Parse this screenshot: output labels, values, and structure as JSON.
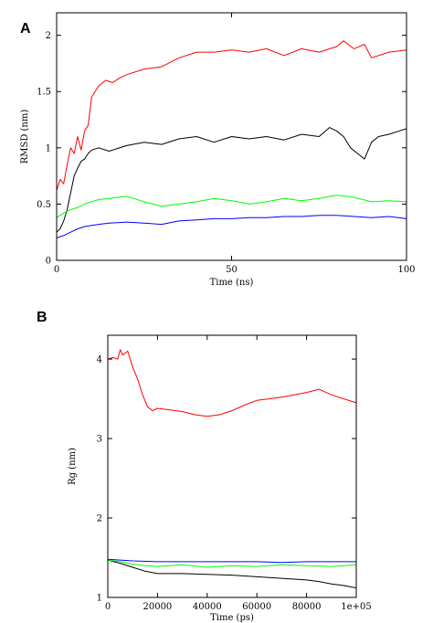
{
  "chart_data": [
    {
      "type": "line",
      "panel_label": "A",
      "xlabel": "Time (ns)",
      "ylabel": "RMSD (nm)",
      "xlim": [
        0,
        100
      ],
      "ylim": [
        0,
        2.2
      ],
      "xticks": [
        0,
        50,
        100
      ],
      "xtick_labels": [
        "0",
        "50",
        "100"
      ],
      "yticks": [
        0,
        0.5,
        1,
        1.5,
        2
      ],
      "ytick_labels": [
        "0",
        "0.5",
        "1",
        "1.5",
        "2"
      ],
      "grid": false,
      "series": [
        {
          "color": "#ff0000",
          "x": [
            0,
            1,
            2,
            3,
            4,
            5,
            6,
            7,
            8,
            9,
            10,
            12,
            14,
            16,
            18,
            20,
            25,
            30,
            35,
            40,
            45,
            50,
            55,
            60,
            65,
            70,
            75,
            80,
            82,
            85,
            88,
            90,
            95,
            100
          ],
          "values": [
            0.62,
            0.72,
            0.68,
            0.85,
            1.0,
            0.95,
            1.1,
            0.98,
            1.15,
            1.2,
            1.45,
            1.55,
            1.6,
            1.58,
            1.62,
            1.65,
            1.7,
            1.72,
            1.8,
            1.85,
            1.85,
            1.87,
            1.85,
            1.88,
            1.82,
            1.88,
            1.85,
            1.9,
            1.95,
            1.88,
            1.92,
            1.8,
            1.85,
            1.87
          ]
        },
        {
          "color": "#000000",
          "x": [
            0,
            1,
            2,
            3,
            4,
            5,
            6,
            7,
            8,
            9,
            10,
            12,
            15,
            20,
            25,
            30,
            35,
            40,
            45,
            50,
            55,
            60,
            65,
            70,
            75,
            78,
            80,
            82,
            84,
            86,
            88,
            90,
            92,
            95,
            98,
            100
          ],
          "values": [
            0.25,
            0.28,
            0.35,
            0.45,
            0.6,
            0.75,
            0.82,
            0.88,
            0.9,
            0.95,
            0.98,
            1.0,
            0.97,
            1.02,
            1.05,
            1.03,
            1.08,
            1.1,
            1.05,
            1.1,
            1.08,
            1.1,
            1.07,
            1.12,
            1.1,
            1.18,
            1.15,
            1.1,
            1.0,
            0.95,
            0.9,
            1.05,
            1.1,
            1.12,
            1.15,
            1.17
          ]
        },
        {
          "color": "#00ff00",
          "x": [
            0,
            2,
            4,
            6,
            8,
            10,
            12,
            15,
            20,
            25,
            30,
            35,
            40,
            45,
            50,
            55,
            60,
            65,
            70,
            75,
            80,
            85,
            90,
            95,
            100
          ],
          "values": [
            0.38,
            0.42,
            0.45,
            0.47,
            0.5,
            0.52,
            0.54,
            0.55,
            0.57,
            0.52,
            0.48,
            0.5,
            0.52,
            0.55,
            0.53,
            0.5,
            0.52,
            0.55,
            0.53,
            0.55,
            0.58,
            0.56,
            0.52,
            0.53,
            0.52
          ]
        },
        {
          "color": "#0000ff",
          "x": [
            0,
            2,
            4,
            6,
            8,
            10,
            12,
            15,
            20,
            25,
            30,
            35,
            40,
            45,
            50,
            55,
            60,
            65,
            70,
            75,
            80,
            85,
            90,
            95,
            100
          ],
          "values": [
            0.2,
            0.22,
            0.25,
            0.28,
            0.3,
            0.31,
            0.32,
            0.33,
            0.34,
            0.33,
            0.32,
            0.35,
            0.36,
            0.37,
            0.37,
            0.38,
            0.38,
            0.39,
            0.39,
            0.4,
            0.4,
            0.39,
            0.38,
            0.39,
            0.37
          ]
        }
      ]
    },
    {
      "type": "line",
      "panel_label": "B",
      "xlabel": "Time (ps)",
      "ylabel": "Rg (nm)",
      "xlim": [
        0,
        100000
      ],
      "ylim": [
        1,
        4.3
      ],
      "xticks": [
        0,
        20000,
        40000,
        60000,
        80000,
        100000
      ],
      "xtick_labels": [
        "0",
        "20000",
        "40000",
        "60000",
        "80000",
        "1e+05"
      ],
      "yticks": [
        1,
        2,
        3,
        4
      ],
      "ytick_labels": [
        "1",
        "2",
        "3",
        "4"
      ],
      "grid": false,
      "series": [
        {
          "color": "#ff0000",
          "x": [
            0,
            2000,
            4000,
            5000,
            6000,
            8000,
            10000,
            12000,
            14000,
            16000,
            18000,
            20000,
            25000,
            30000,
            35000,
            40000,
            45000,
            50000,
            55000,
            60000,
            65000,
            70000,
            75000,
            80000,
            85000,
            90000,
            95000,
            100000
          ],
          "values": [
            4.0,
            4.02,
            4.0,
            4.12,
            4.05,
            4.1,
            3.9,
            3.75,
            3.55,
            3.4,
            3.35,
            3.38,
            3.36,
            3.34,
            3.3,
            3.28,
            3.3,
            3.35,
            3.42,
            3.48,
            3.5,
            3.52,
            3.55,
            3.58,
            3.62,
            3.55,
            3.5,
            3.45
          ]
        },
        {
          "color": "#000000",
          "x": [
            0,
            5000,
            10000,
            15000,
            20000,
            30000,
            40000,
            50000,
            60000,
            70000,
            80000,
            85000,
            90000,
            95000,
            100000
          ],
          "values": [
            1.47,
            1.43,
            1.38,
            1.33,
            1.3,
            1.3,
            1.29,
            1.28,
            1.26,
            1.24,
            1.22,
            1.2,
            1.17,
            1.15,
            1.12
          ]
        },
        {
          "color": "#00ff00",
          "x": [
            0,
            5000,
            10000,
            15000,
            20000,
            30000,
            40000,
            50000,
            60000,
            70000,
            80000,
            90000,
            100000
          ],
          "values": [
            1.47,
            1.45,
            1.42,
            1.4,
            1.39,
            1.41,
            1.38,
            1.4,
            1.39,
            1.41,
            1.4,
            1.39,
            1.41
          ]
        },
        {
          "color": "#0000ff",
          "x": [
            0,
            5000,
            10000,
            20000,
            30000,
            40000,
            50000,
            60000,
            70000,
            80000,
            90000,
            100000
          ],
          "values": [
            1.48,
            1.47,
            1.46,
            1.45,
            1.45,
            1.45,
            1.45,
            1.45,
            1.44,
            1.45,
            1.45,
            1.45
          ]
        }
      ]
    }
  ]
}
